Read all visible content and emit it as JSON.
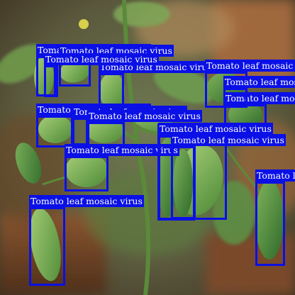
{
  "image": {
    "alt": "Tomato plant leaves with detection boxes",
    "colors": {
      "box": "#0a10e6",
      "label_text": "#ffffff"
    }
  },
  "detections": [
    {
      "label": "Tomato leaf mosaic virus"
    },
    {
      "label": "Tomato leaf mosaic virus"
    },
    {
      "label": "Tomato leaf mosaic virus"
    },
    {
      "label": "Tomato leaf mosaic virus"
    },
    {
      "label": "Tomato leaf mosaic virus"
    },
    {
      "label": "Tomato leaf mosaic virus"
    },
    {
      "label": "Tomato leaf mosaic virus"
    },
    {
      "label": "Tomato leaf mosaic virus"
    },
    {
      "label": "Tomato leaf mosaic virus"
    },
    {
      "label": "Tomato leaf mosaic virus"
    },
    {
      "label": "Tomato leaf mosaic virus"
    },
    {
      "label": "Tomato leaf mosaic virus"
    },
    {
      "label": "Tomato leaf mosaic virus"
    },
    {
      "label": "Tomato leaf mosaic virus"
    },
    {
      "label": "Tomato leaf mosaic virus"
    },
    {
      "label": "Tomato leaf mosaic virus"
    }
  ]
}
